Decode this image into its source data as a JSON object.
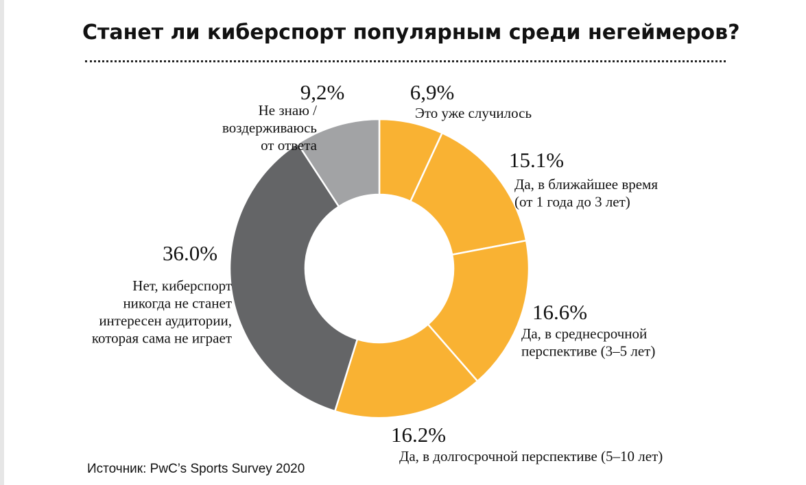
{
  "page": {
    "title": "Станет ли киберспорт популярным среди негеймеров?",
    "source": "Источник: PwC’s Sports Survey 2020"
  },
  "colors": {
    "yes": "#f9b233",
    "no": "#646567",
    "unknown": "#a2a3a5",
    "separator": "#ffffff",
    "text": "#111111"
  },
  "chart_data": {
    "type": "pie",
    "donut": true,
    "title": "Станет ли киберспорт популярным среди негеймеров?",
    "slices": [
      {
        "label_lines": [
          "Это уже случилось"
        ],
        "value": 6.9,
        "display": "6,9%",
        "color": "#f9b233"
      },
      {
        "label_lines": [
          "Да, в ближайшее время",
          "(от 1 года до 3 лет)"
        ],
        "value": 15.1,
        "display": "15.1%",
        "color": "#f9b233"
      },
      {
        "label_lines": [
          "Да, в среднесрочной",
          "перспективе (3–5 лет)"
        ],
        "value": 16.6,
        "display": "16.6%",
        "color": "#f9b233"
      },
      {
        "label_lines": [
          "Да, в долгосрочной перспективе (5–10 лет)"
        ],
        "value": 16.2,
        "display": "16.2%",
        "color": "#f9b233"
      },
      {
        "label_lines": [
          "Нет, киберспорт",
          "никогда не станет",
          "интересен аудитории,",
          "которая сама не играет"
        ],
        "value": 36.0,
        "display": "36.0%",
        "color": "#646567"
      },
      {
        "label_lines": [
          "Не знаю /",
          "воздерживаюсь",
          "от ответа"
        ],
        "value": 9.2,
        "display": "9,2%",
        "color": "#a2a3a5"
      }
    ]
  }
}
